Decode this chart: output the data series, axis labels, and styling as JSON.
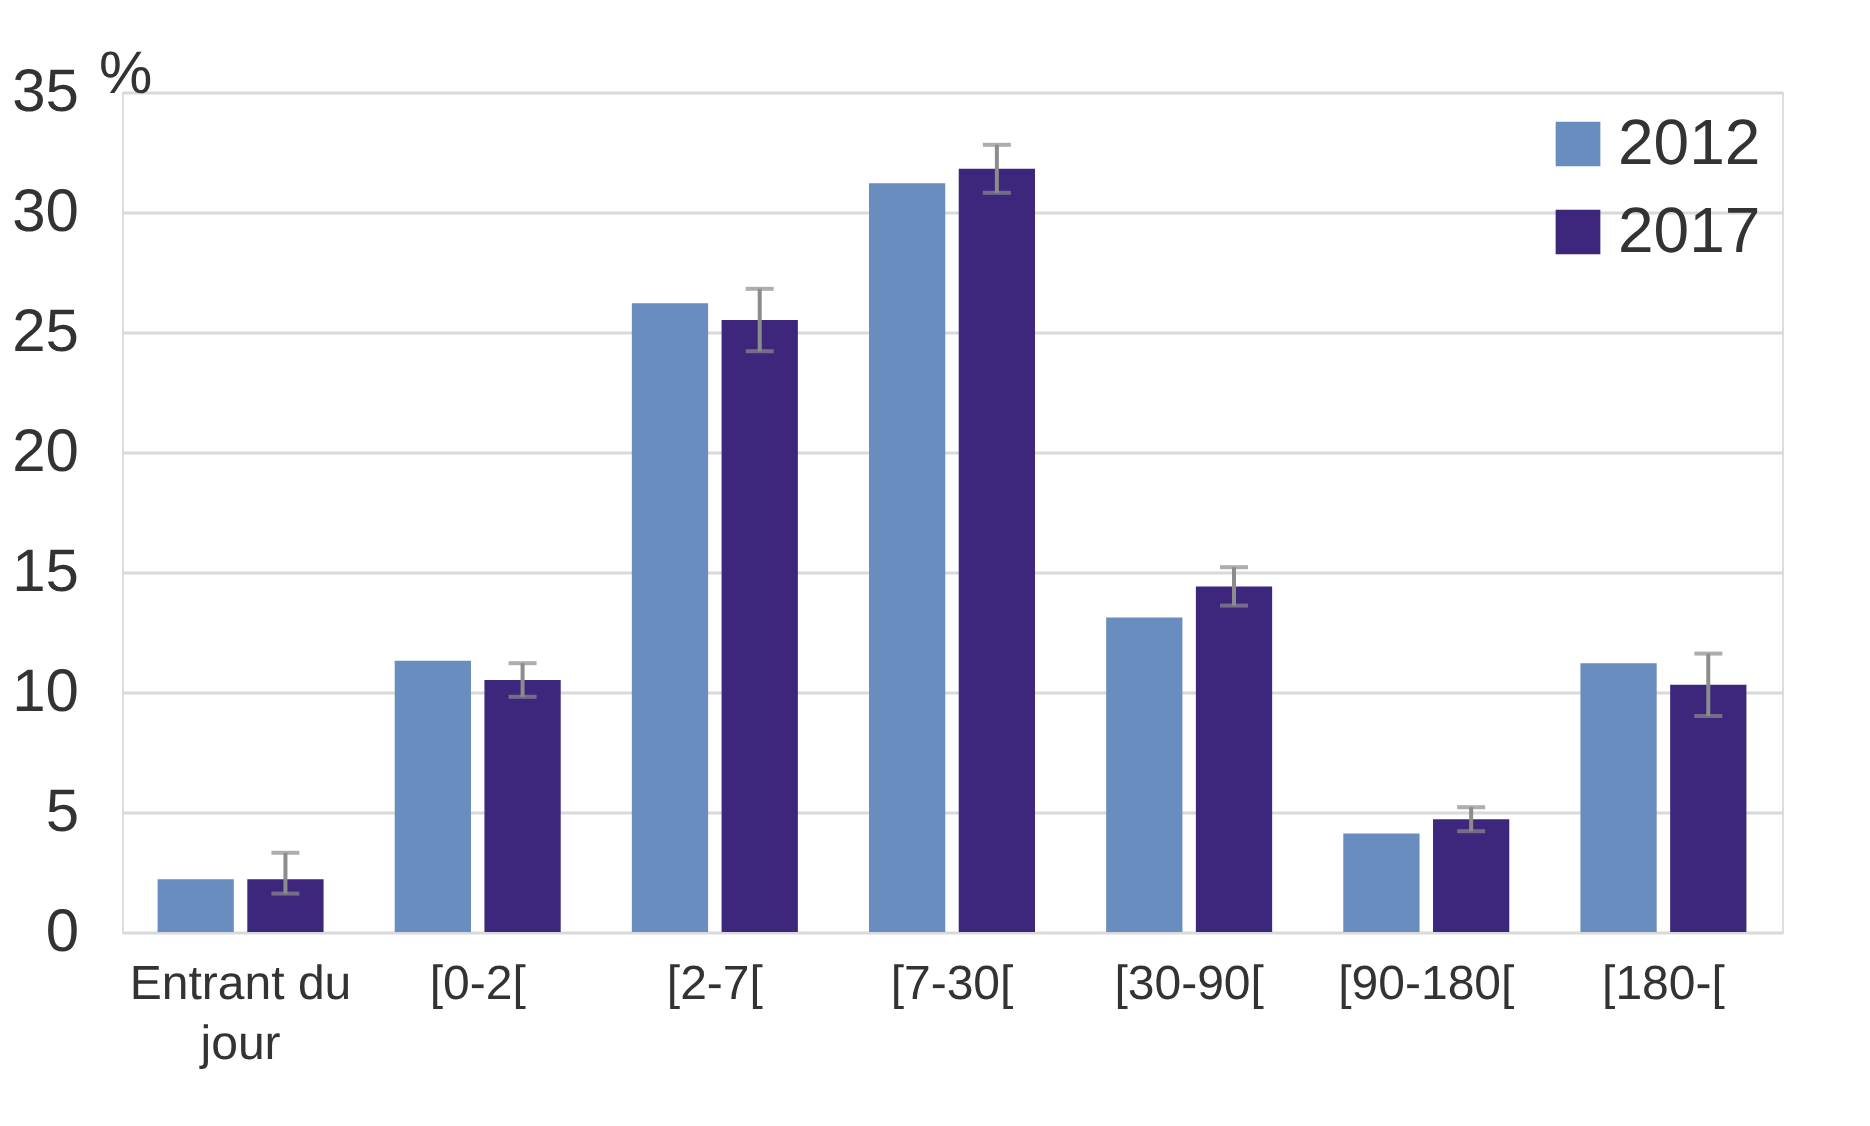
{
  "chart_data": {
    "type": "bar",
    "ylabel": "%",
    "categories": [
      "Entrant du jour",
      "[0-2[",
      "[2-7[",
      "[7-30[",
      "[30-90[",
      "[90-180[",
      "[180-["
    ],
    "series": [
      {
        "name": "2012",
        "color": "#6a8dc0",
        "values": [
          2.2,
          11.3,
          26.2,
          31.2,
          13.1,
          4.1,
          11.2
        ]
      },
      {
        "name": "2017",
        "color": "#3c277d",
        "values": [
          2.2,
          10.5,
          25.5,
          31.8,
          14.4,
          4.7,
          10.3
        ],
        "errors": [
          [
            1.6,
            3.3
          ],
          0.7,
          1.3,
          1.0,
          0.8,
          0.5,
          1.3
        ]
      }
    ],
    "ylim": [
      0,
      35
    ],
    "yticks": [
      0,
      5,
      10,
      15,
      20,
      25,
      30,
      35
    ],
    "grid": "y",
    "legend": "top right"
  }
}
